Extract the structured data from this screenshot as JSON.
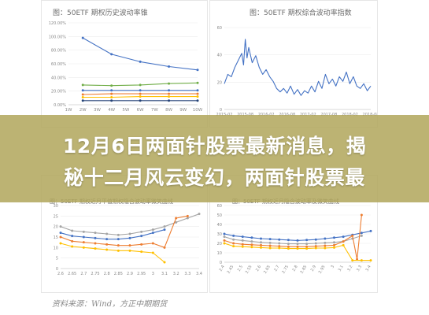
{
  "headline": {
    "line1": "12月6日两面针股票最新消息，揭",
    "line2": "秘十二月风云变幻，两面针股票最"
  },
  "source_note": "资料来源：Wind，方正中期期货",
  "colors": {
    "banner": "#b1a65c",
    "blue": "#4472c4",
    "green": "#70ad47",
    "orange": "#ed7d31",
    "yellow": "#ffc000",
    "gray": "#a5a5a5",
    "navy": "#264478"
  },
  "chart_data": [
    {
      "id": "tl",
      "type": "line",
      "title": "图：50ETF 期权历史波动率锥",
      "x_ticks": [
        "1W",
        "2W",
        "3W",
        "4W",
        "5W",
        "6W",
        "7W",
        "8W",
        "9W",
        "10W"
      ],
      "y_ticks": [
        "0.00%",
        "20.00%",
        "40.00%",
        "60.00%",
        "80.00%",
        "100.00%",
        "120.00%"
      ],
      "ylim": [
        0,
        120
      ],
      "series": [
        {
          "color": "blue",
          "values": [
            {
              "x": 2,
              "y": 98
            },
            {
              "x": 4,
              "y": 74
            },
            {
              "x": 6,
              "y": 63
            },
            {
              "x": 8,
              "y": 56
            },
            {
              "x": 10,
              "y": 51
            }
          ]
        },
        {
          "color": "green",
          "values": [
            {
              "x": 2,
              "y": 29
            },
            {
              "x": 4,
              "y": 28
            },
            {
              "x": 6,
              "y": 29
            },
            {
              "x": 8,
              "y": 31
            },
            {
              "x": 10,
              "y": 32
            }
          ]
        },
        {
          "color": "blue",
          "values": [
            {
              "x": 2,
              "y": 21
            },
            {
              "x": 4,
              "y": 21
            },
            {
              "x": 6,
              "y": 21
            },
            {
              "x": 8,
              "y": 21
            },
            {
              "x": 10,
              "y": 21
            }
          ]
        },
        {
          "color": "orange",
          "values": [
            {
              "x": 2,
              "y": 15
            },
            {
              "x": 4,
              "y": 16
            },
            {
              "x": 6,
              "y": 16
            },
            {
              "x": 8,
              "y": 16
            },
            {
              "x": 10,
              "y": 16
            }
          ]
        },
        {
          "color": "yellow",
          "values": [
            {
              "x": 2,
              "y": 11
            },
            {
              "x": 4,
              "y": 11
            },
            {
              "x": 6,
              "y": 12
            },
            {
              "x": 8,
              "y": 12
            },
            {
              "x": 10,
              "y": 12
            }
          ]
        },
        {
          "color": "navy",
          "values": [
            {
              "x": 2,
              "y": 6
            },
            {
              "x": 4,
              "y": 6
            },
            {
              "x": 6,
              "y": 6
            },
            {
              "x": 8,
              "y": 6
            },
            {
              "x": 10,
              "y": 6
            }
          ]
        }
      ]
    },
    {
      "id": "tr",
      "type": "line",
      "title": "图：50ETF 期权综合波动率指数",
      "x_ticks": [
        "2015-02",
        "2015-08",
        "2016-02",
        "2016-08",
        "2017-02",
        "2017-08",
        "2018-02",
        "2018-08"
      ],
      "y_ticks": [
        "0",
        "20",
        "40",
        "60"
      ],
      "ylim": [
        0,
        70
      ],
      "series": [
        {
          "color": "blue",
          "values": [
            {
              "x": 0,
              "y": 22
            },
            {
              "x": 2,
              "y": 30
            },
            {
              "x": 4,
              "y": 28
            },
            {
              "x": 6,
              "y": 36
            },
            {
              "x": 8,
              "y": 42
            },
            {
              "x": 10,
              "y": 48
            },
            {
              "x": 11,
              "y": 38
            },
            {
              "x": 12,
              "y": 60
            },
            {
              "x": 13,
              "y": 44
            },
            {
              "x": 14,
              "y": 53
            },
            {
              "x": 16,
              "y": 40
            },
            {
              "x": 18,
              "y": 46
            },
            {
              "x": 20,
              "y": 36
            },
            {
              "x": 22,
              "y": 30
            },
            {
              "x": 24,
              "y": 34
            },
            {
              "x": 26,
              "y": 28
            },
            {
              "x": 28,
              "y": 24
            },
            {
              "x": 30,
              "y": 18
            },
            {
              "x": 32,
              "y": 15
            },
            {
              "x": 34,
              "y": 18
            },
            {
              "x": 36,
              "y": 14
            },
            {
              "x": 38,
              "y": 20
            },
            {
              "x": 40,
              "y": 13
            },
            {
              "x": 42,
              "y": 17
            },
            {
              "x": 44,
              "y": 12
            },
            {
              "x": 46,
              "y": 16
            },
            {
              "x": 48,
              "y": 14
            },
            {
              "x": 50,
              "y": 20
            },
            {
              "x": 52,
              "y": 15
            },
            {
              "x": 54,
              "y": 24
            },
            {
              "x": 56,
              "y": 18
            },
            {
              "x": 58,
              "y": 30
            },
            {
              "x": 60,
              "y": 22
            },
            {
              "x": 62,
              "y": 26
            },
            {
              "x": 64,
              "y": 20
            },
            {
              "x": 66,
              "y": 28
            },
            {
              "x": 68,
              "y": 24
            },
            {
              "x": 70,
              "y": 32
            },
            {
              "x": 72,
              "y": 22
            },
            {
              "x": 74,
              "y": 28
            },
            {
              "x": 76,
              "y": 20
            },
            {
              "x": 78,
              "y": 18
            },
            {
              "x": 80,
              "y": 22
            },
            {
              "x": 82,
              "y": 16
            },
            {
              "x": 84,
              "y": 20
            }
          ]
        }
      ]
    },
    {
      "id": "bl",
      "type": "line",
      "title": "图：50ETF 期权近月平值期权隐含波动率微笑曲线",
      "x_ticks": [
        "2.6",
        "2.65",
        "2.7",
        "2.75",
        "2.8",
        "2.85",
        "2.9",
        "2.95",
        "3",
        "3.1",
        "3.2",
        "3.3",
        "3.4"
      ],
      "y_ticks": [
        "0",
        "5",
        "10",
        "15",
        "20",
        "25",
        "30"
      ],
      "ylim": [
        0,
        30
      ],
      "series": [
        {
          "color": "gray",
          "values": [
            {
              "x": 0,
              "y": 20
            },
            {
              "x": 1,
              "y": 18
            },
            {
              "x": 2,
              "y": 17.5
            },
            {
              "x": 3,
              "y": 17
            },
            {
              "x": 4,
              "y": 16.5
            },
            {
              "x": 5,
              "y": 16
            },
            {
              "x": 6,
              "y": 16.5
            },
            {
              "x": 7,
              "y": 17.5
            },
            {
              "x": 8,
              "y": 18.5
            },
            {
              "x": 9,
              "y": 20
            },
            {
              "x": 10,
              "y": 22
            },
            {
              "x": 11,
              "y": 24
            },
            {
              "x": 12,
              "y": 26
            }
          ]
        },
        {
          "color": "orange",
          "values": [
            {
              "x": 0,
              "y": 15
            },
            {
              "x": 1,
              "y": 13
            },
            {
              "x": 2,
              "y": 12.5
            },
            {
              "x": 3,
              "y": 12
            },
            {
              "x": 4,
              "y": 11.5
            },
            {
              "x": 5,
              "y": 11
            },
            {
              "x": 6,
              "y": 11
            },
            {
              "x": 7,
              "y": 11.5
            },
            {
              "x": 8,
              "y": 12
            },
            {
              "x": 9,
              "y": 10
            },
            {
              "x": 10,
              "y": 24
            },
            {
              "x": 11,
              "y": 25
            }
          ]
        },
        {
          "color": "blue",
          "values": [
            {
              "x": 0,
              "y": 17
            },
            {
              "x": 1,
              "y": 15.5
            },
            {
              "x": 2,
              "y": 15
            },
            {
              "x": 3,
              "y": 14.5
            },
            {
              "x": 4,
              "y": 14
            },
            {
              "x": 5,
              "y": 14
            },
            {
              "x": 6,
              "y": 14.5
            },
            {
              "x": 7,
              "y": 15.5
            },
            {
              "x": 8,
              "y": 17
            },
            {
              "x": 9,
              "y": 18.5
            }
          ]
        },
        {
          "color": "yellow",
          "values": [
            {
              "x": 0,
              "y": 12
            },
            {
              "x": 1,
              "y": 10.5
            },
            {
              "x": 2,
              "y": 10
            },
            {
              "x": 3,
              "y": 9.5
            },
            {
              "x": 4,
              "y": 9
            },
            {
              "x": 5,
              "y": 8.5
            },
            {
              "x": 6,
              "y": 8.5
            },
            {
              "x": 7,
              "y": 8
            },
            {
              "x": 8,
              "y": 7.5
            },
            {
              "x": 9,
              "y": 3
            }
          ]
        }
      ]
    },
    {
      "id": "br",
      "type": "line",
      "title": "图：50ETF 期权近月隐含波动率及微笑曲线",
      "x_ticks": [
        "2.4",
        "2.45",
        "2.5",
        "2.55",
        "2.6",
        "2.65",
        "2.7",
        "2.75",
        "2.8",
        "2.85",
        "2.9",
        "2.95",
        "3",
        "3.1",
        "3.2",
        "3.3",
        "3.4"
      ],
      "y_ticks": [
        "0",
        "10",
        "20",
        "30",
        "40",
        "50",
        "60"
      ],
      "ylim": [
        0,
        60
      ],
      "series": [
        {
          "color": "blue",
          "values": [
            {
              "x": 0,
              "y": 30
            },
            {
              "x": 1,
              "y": 28
            },
            {
              "x": 2,
              "y": 27
            },
            {
              "x": 3,
              "y": 26
            },
            {
              "x": 4,
              "y": 25
            },
            {
              "x": 5,
              "y": 24.5
            },
            {
              "x": 6,
              "y": 24
            },
            {
              "x": 7,
              "y": 23.5
            },
            {
              "x": 8,
              "y": 23
            },
            {
              "x": 9,
              "y": 23.5
            },
            {
              "x": 10,
              "y": 24
            },
            {
              "x": 11,
              "y": 25
            },
            {
              "x": 12,
              "y": 26
            },
            {
              "x": 13,
              "y": 27
            },
            {
              "x": 14,
              "y": 29
            },
            {
              "x": 15,
              "y": 31
            },
            {
              "x": 16,
              "y": 33
            }
          ]
        },
        {
          "color": "gray",
          "values": [
            {
              "x": 0,
              "y": 27
            },
            {
              "x": 1,
              "y": 24
            },
            {
              "x": 2,
              "y": 23
            },
            {
              "x": 3,
              "y": 22
            },
            {
              "x": 4,
              "y": 21
            },
            {
              "x": 5,
              "y": 20.5
            },
            {
              "x": 6,
              "y": 20
            },
            {
              "x": 7,
              "y": 19.5
            },
            {
              "x": 8,
              "y": 19.5
            },
            {
              "x": 9,
              "y": 19.5
            },
            {
              "x": 10,
              "y": 20
            },
            {
              "x": 11,
              "y": 20.5
            },
            {
              "x": 12,
              "y": 21
            },
            {
              "x": 13,
              "y": 22
            },
            {
              "x": 14,
              "y": 25
            },
            {
              "x": 15,
              "y": 28
            }
          ]
        },
        {
          "color": "orange",
          "values": [
            {
              "x": 0,
              "y": 23
            },
            {
              "x": 1,
              "y": 20
            },
            {
              "x": 2,
              "y": 19
            },
            {
              "x": 3,
              "y": 18.5
            },
            {
              "x": 4,
              "y": 18
            },
            {
              "x": 5,
              "y": 17.5
            },
            {
              "x": 6,
              "y": 17
            },
            {
              "x": 7,
              "y": 16.5
            },
            {
              "x": 8,
              "y": 16.5
            },
            {
              "x": 9,
              "y": 16.5
            },
            {
              "x": 10,
              "y": 17
            },
            {
              "x": 11,
              "y": 17.5
            },
            {
              "x": 12,
              "y": 18
            },
            {
              "x": 13,
              "y": 22
            },
            {
              "x": 14,
              "y": 28
            },
            {
              "x": 14.5,
              "y": 3
            },
            {
              "x": 15,
              "y": 50
            }
          ]
        },
        {
          "color": "yellow",
          "values": [
            {
              "x": 0,
              "y": 20
            },
            {
              "x": 1,
              "y": 17
            },
            {
              "x": 2,
              "y": 16.5
            },
            {
              "x": 3,
              "y": 16
            },
            {
              "x": 4,
              "y": 15.5
            },
            {
              "x": 5,
              "y": 15
            },
            {
              "x": 6,
              "y": 15
            },
            {
              "x": 7,
              "y": 14.5
            },
            {
              "x": 8,
              "y": 14.5
            },
            {
              "x": 9,
              "y": 14.5
            },
            {
              "x": 10,
              "y": 15
            },
            {
              "x": 11,
              "y": 15
            },
            {
              "x": 12,
              "y": 15.5
            },
            {
              "x": 13,
              "y": 18
            },
            {
              "x": 14,
              "y": 2
            },
            {
              "x": 15,
              "y": 2
            },
            {
              "x": 16,
              "y": 2
            }
          ]
        }
      ]
    }
  ]
}
